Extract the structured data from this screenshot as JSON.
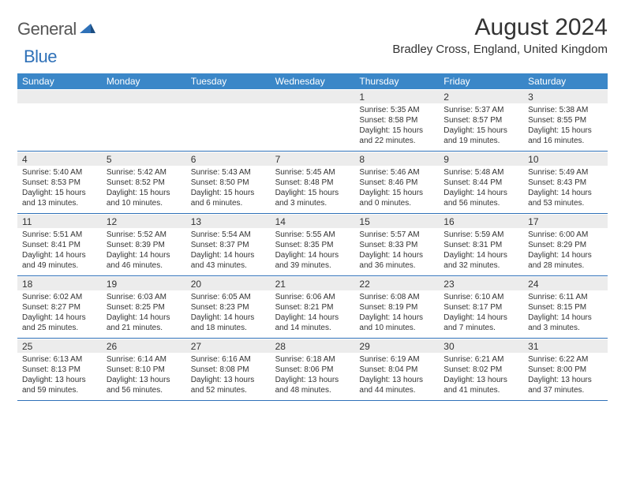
{
  "brand": {
    "word1": "General",
    "word2": "Blue"
  },
  "title": "August 2024",
  "location": "Bradley Cross, England, United Kingdom",
  "colors": {
    "header_bg": "#3b87c8",
    "daynum_bg": "#ececec",
    "rule": "#2f71b8",
    "text": "#333333",
    "brand_gray": "#565656",
    "brand_blue": "#2f71b8"
  },
  "dow": [
    "Sunday",
    "Monday",
    "Tuesday",
    "Wednesday",
    "Thursday",
    "Friday",
    "Saturday"
  ],
  "weeks": [
    [
      null,
      null,
      null,
      null,
      {
        "n": "1",
        "sr": "5:35 AM",
        "ss": "8:58 PM",
        "dh": "15",
        "dm": "22"
      },
      {
        "n": "2",
        "sr": "5:37 AM",
        "ss": "8:57 PM",
        "dh": "15",
        "dm": "19"
      },
      {
        "n": "3",
        "sr": "5:38 AM",
        "ss": "8:55 PM",
        "dh": "15",
        "dm": "16"
      }
    ],
    [
      {
        "n": "4",
        "sr": "5:40 AM",
        "ss": "8:53 PM",
        "dh": "15",
        "dm": "13"
      },
      {
        "n": "5",
        "sr": "5:42 AM",
        "ss": "8:52 PM",
        "dh": "15",
        "dm": "10"
      },
      {
        "n": "6",
        "sr": "5:43 AM",
        "ss": "8:50 PM",
        "dh": "15",
        "dm": "6"
      },
      {
        "n": "7",
        "sr": "5:45 AM",
        "ss": "8:48 PM",
        "dh": "15",
        "dm": "3"
      },
      {
        "n": "8",
        "sr": "5:46 AM",
        "ss": "8:46 PM",
        "dh": "15",
        "dm": "0"
      },
      {
        "n": "9",
        "sr": "5:48 AM",
        "ss": "8:44 PM",
        "dh": "14",
        "dm": "56"
      },
      {
        "n": "10",
        "sr": "5:49 AM",
        "ss": "8:43 PM",
        "dh": "14",
        "dm": "53"
      }
    ],
    [
      {
        "n": "11",
        "sr": "5:51 AM",
        "ss": "8:41 PM",
        "dh": "14",
        "dm": "49"
      },
      {
        "n": "12",
        "sr": "5:52 AM",
        "ss": "8:39 PM",
        "dh": "14",
        "dm": "46"
      },
      {
        "n": "13",
        "sr": "5:54 AM",
        "ss": "8:37 PM",
        "dh": "14",
        "dm": "43"
      },
      {
        "n": "14",
        "sr": "5:55 AM",
        "ss": "8:35 PM",
        "dh": "14",
        "dm": "39"
      },
      {
        "n": "15",
        "sr": "5:57 AM",
        "ss": "8:33 PM",
        "dh": "14",
        "dm": "36"
      },
      {
        "n": "16",
        "sr": "5:59 AM",
        "ss": "8:31 PM",
        "dh": "14",
        "dm": "32"
      },
      {
        "n": "17",
        "sr": "6:00 AM",
        "ss": "8:29 PM",
        "dh": "14",
        "dm": "28"
      }
    ],
    [
      {
        "n": "18",
        "sr": "6:02 AM",
        "ss": "8:27 PM",
        "dh": "14",
        "dm": "25"
      },
      {
        "n": "19",
        "sr": "6:03 AM",
        "ss": "8:25 PM",
        "dh": "14",
        "dm": "21"
      },
      {
        "n": "20",
        "sr": "6:05 AM",
        "ss": "8:23 PM",
        "dh": "14",
        "dm": "18"
      },
      {
        "n": "21",
        "sr": "6:06 AM",
        "ss": "8:21 PM",
        "dh": "14",
        "dm": "14"
      },
      {
        "n": "22",
        "sr": "6:08 AM",
        "ss": "8:19 PM",
        "dh": "14",
        "dm": "10"
      },
      {
        "n": "23",
        "sr": "6:10 AM",
        "ss": "8:17 PM",
        "dh": "14",
        "dm": "7"
      },
      {
        "n": "24",
        "sr": "6:11 AM",
        "ss": "8:15 PM",
        "dh": "14",
        "dm": "3"
      }
    ],
    [
      {
        "n": "25",
        "sr": "6:13 AM",
        "ss": "8:13 PM",
        "dh": "13",
        "dm": "59"
      },
      {
        "n": "26",
        "sr": "6:14 AM",
        "ss": "8:10 PM",
        "dh": "13",
        "dm": "56"
      },
      {
        "n": "27",
        "sr": "6:16 AM",
        "ss": "8:08 PM",
        "dh": "13",
        "dm": "52"
      },
      {
        "n": "28",
        "sr": "6:18 AM",
        "ss": "8:06 PM",
        "dh": "13",
        "dm": "48"
      },
      {
        "n": "29",
        "sr": "6:19 AM",
        "ss": "8:04 PM",
        "dh": "13",
        "dm": "44"
      },
      {
        "n": "30",
        "sr": "6:21 AM",
        "ss": "8:02 PM",
        "dh": "13",
        "dm": "41"
      },
      {
        "n": "31",
        "sr": "6:22 AM",
        "ss": "8:00 PM",
        "dh": "13",
        "dm": "37"
      }
    ]
  ],
  "labels": {
    "sunrise_prefix": "Sunrise: ",
    "sunset_prefix": "Sunset: ",
    "daylight_prefix": "Daylight: ",
    "hours_word": " hours",
    "and_word": "and ",
    "minutes_word": " minutes."
  }
}
